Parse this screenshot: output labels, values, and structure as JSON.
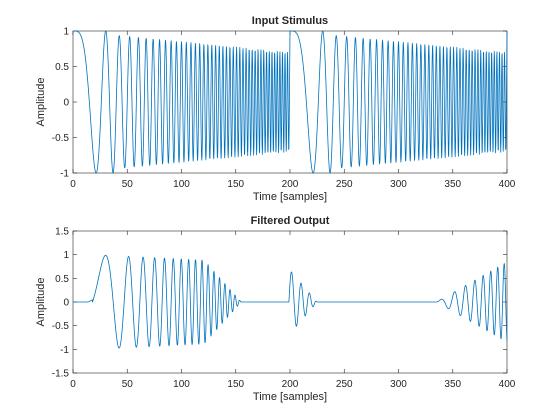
{
  "chart_data": [
    {
      "type": "line",
      "title": "Input Stimulus",
      "xlabel": "Time [samples]",
      "ylabel": "Amplitude",
      "xlim": [
        0,
        400
      ],
      "ylim": [
        -1,
        1
      ],
      "xticks": [
        "0",
        "50",
        "100",
        "150",
        "200",
        "250",
        "300",
        "350",
        "400"
      ],
      "yticks": [
        "-1",
        "-0.5",
        "0",
        "0.5",
        "1"
      ],
      "grid": false,
      "series": [
        {
          "color": "#0072BD",
          "description_values": "cosine chirp repeated twice: starts at 1 at sample 0 (and again at sample 200); frequency increases linearly through each 200-sample segment; envelope 1.0 to about 0.7 near segment end",
          "segments": [
            {
              "x_start": 0,
              "x_end": 200,
              "amplitude_start": 1.0,
              "amplitude_end": 0.7
            },
            {
              "x_start": 200,
              "x_end": 400,
              "amplitude_start": 1.0,
              "amplitude_end": 0.7
            }
          ]
        }
      ]
    },
    {
      "type": "line",
      "title": "Filtered Output",
      "xlabel": "Time [samples]",
      "ylabel": "Amplitude",
      "xlim": [
        0,
        400
      ],
      "ylim": [
        -1.5,
        1.5
      ],
      "xticks": [
        "0",
        "50",
        "100",
        "150",
        "200",
        "250",
        "300",
        "350",
        "400"
      ],
      "yticks": [
        "-1.5",
        "-1",
        "-0.5",
        "0",
        "0.5",
        "1",
        "1.5"
      ],
      "grid": false,
      "series": [
        {
          "color": "#0072BD",
          "segments": [
            {
              "x_start": 18,
              "x_end": 155,
              "amplitude_start": 1.05,
              "amplitude_end": 0.0
            },
            {
              "x_start": 199,
              "x_end": 225,
              "amplitude_start": 0.7,
              "amplitude_end": 0.0
            },
            {
              "x_start": 335,
              "x_end": 400,
              "amplitude_start": 0.0,
              "amplitude_end": 0.85
            }
          ]
        }
      ]
    }
  ]
}
